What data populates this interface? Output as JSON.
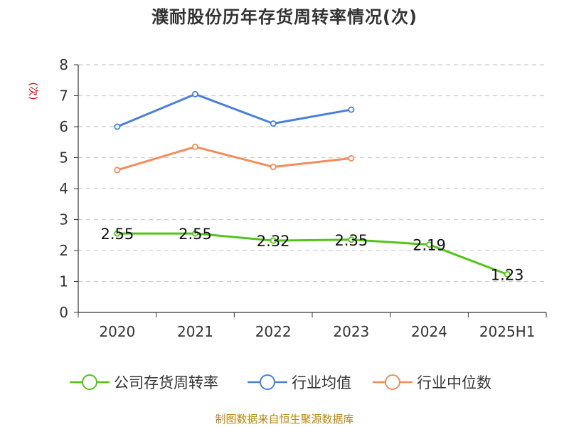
{
  "chart_data": {
    "type": "line",
    "title": "濮耐股份历年存货周转率情况(次)",
    "ylabel": "(次)",
    "categories": [
      "2020",
      "2021",
      "2022",
      "2023",
      "2024",
      "2025H1"
    ],
    "ylim": [
      0,
      8
    ],
    "yticks": [
      0,
      1,
      2,
      3,
      4,
      5,
      6,
      7,
      8
    ],
    "grid": true,
    "legend_position": "bottom",
    "series": [
      {
        "name": "公司存货周转率",
        "color": "#52c41a",
        "values": [
          2.55,
          2.55,
          2.32,
          2.35,
          2.19,
          1.23
        ],
        "labels": [
          "2.55",
          "2.55",
          "2.32",
          "2.35",
          "2.19",
          "1.23"
        ],
        "show_labels": true
      },
      {
        "name": "行业均值",
        "color": "#4a7fd8",
        "values": [
          6.0,
          7.05,
          6.1,
          6.55,
          null,
          null
        ],
        "show_labels": false
      },
      {
        "name": "行业中位数",
        "color": "#f28c5a",
        "values": [
          4.6,
          5.35,
          4.7,
          4.98,
          null,
          null
        ],
        "show_labels": false
      }
    ]
  },
  "source": "制图数据来自恒生聚源数据库"
}
